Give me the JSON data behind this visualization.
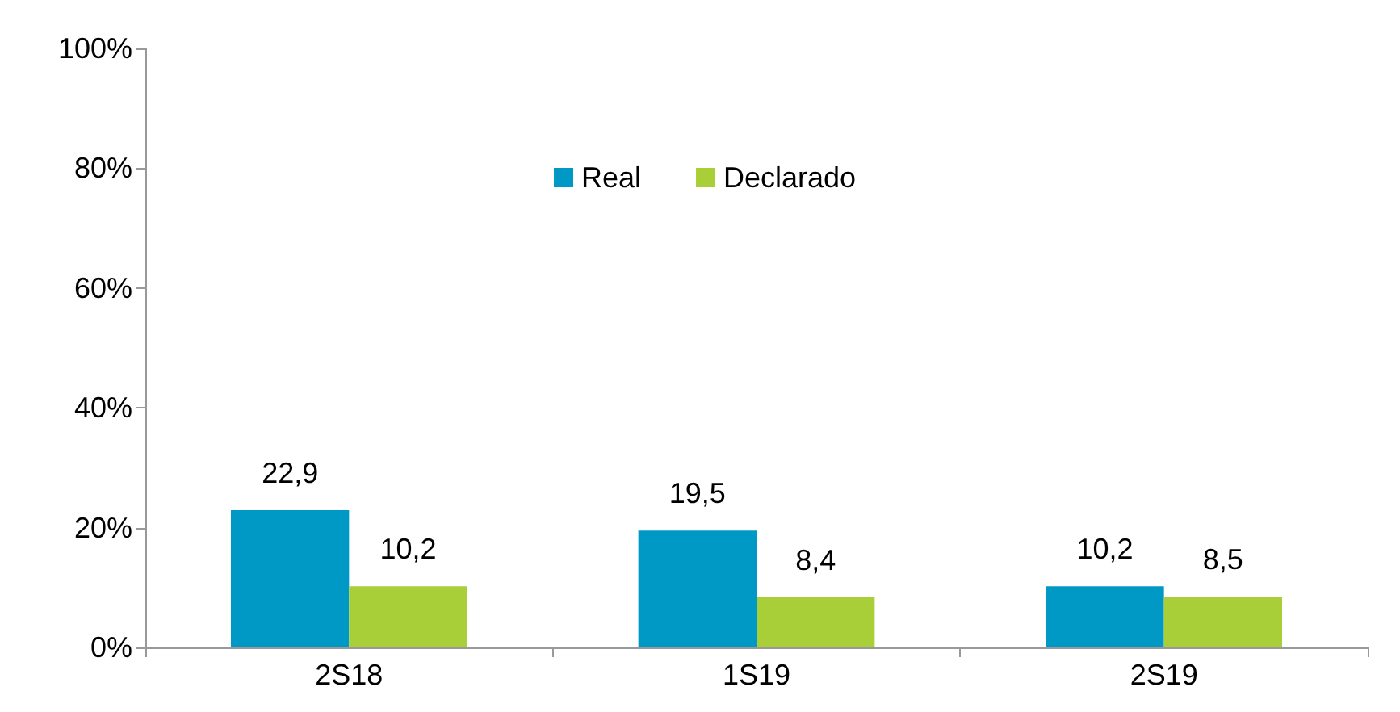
{
  "chart_data": {
    "type": "bar",
    "categories": [
      "2S18",
      "1S19",
      "2S19"
    ],
    "series": [
      {
        "name": "Real",
        "color": "#0099c6",
        "values": [
          22.9,
          19.5,
          10.2
        ],
        "value_labels": [
          "22,9",
          "19,5",
          "10,2"
        ]
      },
      {
        "name": "Declarado",
        "color": "#a8cf38",
        "values": [
          10.2,
          8.4,
          8.5
        ],
        "value_labels": [
          "10,2",
          "8,4",
          "8,5"
        ]
      }
    ],
    "ylim": [
      0,
      100
    ],
    "yticks": [
      {
        "value": 0,
        "label": "0%"
      },
      {
        "value": 20,
        "label": "20%"
      },
      {
        "value": 40,
        "label": "40%"
      },
      {
        "value": 60,
        "label": "60%"
      },
      {
        "value": 80,
        "label": "80%"
      },
      {
        "value": 100,
        "label": "100%"
      }
    ],
    "grid": false,
    "legend": "top"
  }
}
